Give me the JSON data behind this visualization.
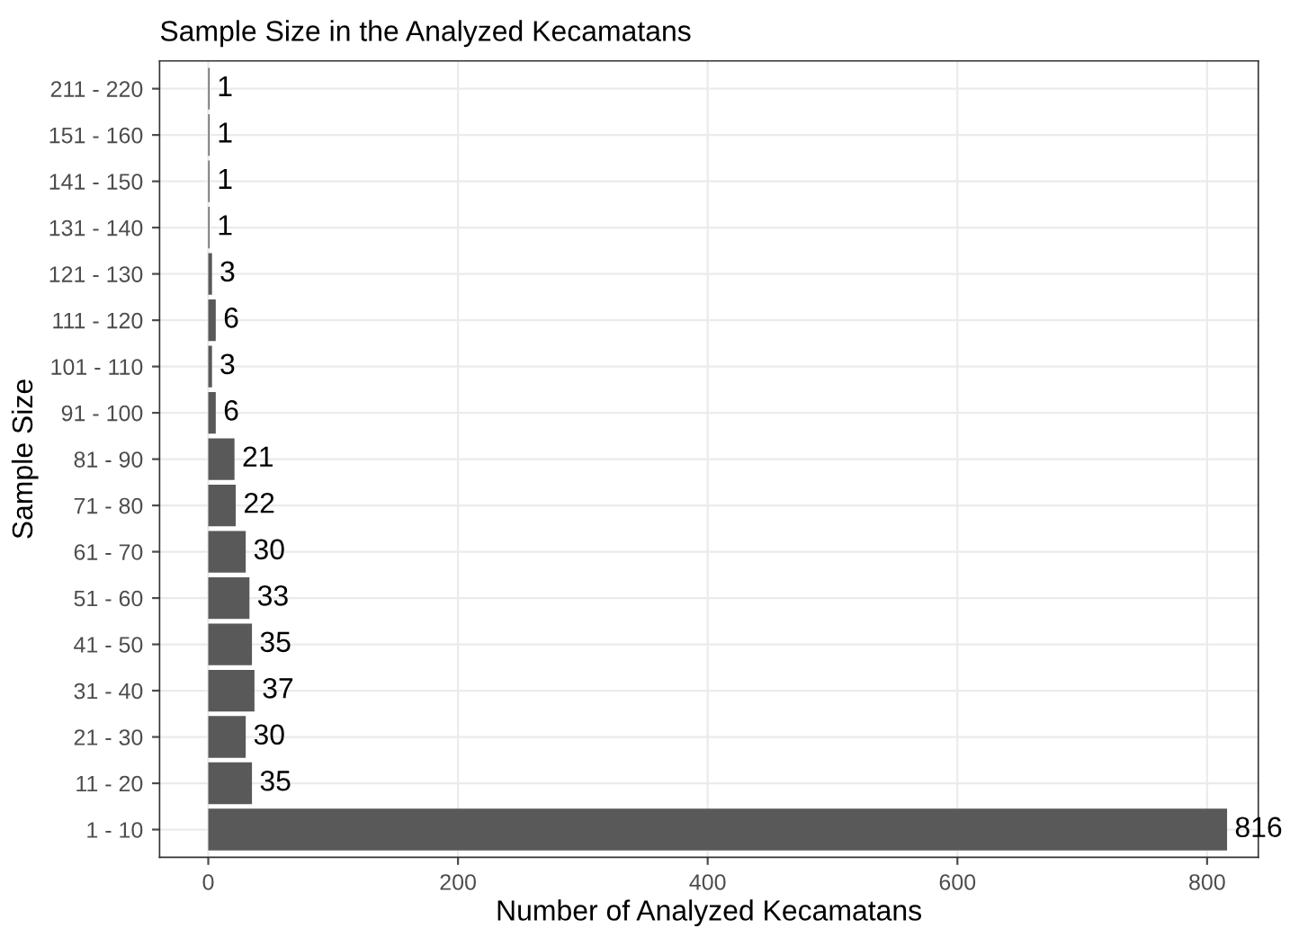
{
  "chart_data": {
    "type": "bar",
    "orientation": "horizontal",
    "title": "Sample Size in the Analyzed Kecamatans",
    "xlabel": "Number of Analyzed Kecamatans",
    "ylabel": "Sample Size",
    "categories": [
      "211 - 220",
      "151 - 160",
      "141 - 150",
      "131 - 140",
      "121 - 130",
      "111 - 120",
      "101 - 110",
      "91 - 100",
      "81 - 90",
      "71 - 80",
      "61 - 70",
      "51 - 60",
      "41 - 50",
      "31 - 40",
      "21 - 30",
      "11 - 20",
      "1 - 10"
    ],
    "values": [
      1,
      1,
      1,
      1,
      3,
      6,
      3,
      6,
      21,
      22,
      30,
      33,
      35,
      37,
      30,
      35,
      816
    ],
    "color": "#595959",
    "xlim": [
      -39,
      841
    ],
    "xticks": [
      0,
      200,
      400,
      600,
      800
    ],
    "grid": true,
    "data_labels": true
  }
}
